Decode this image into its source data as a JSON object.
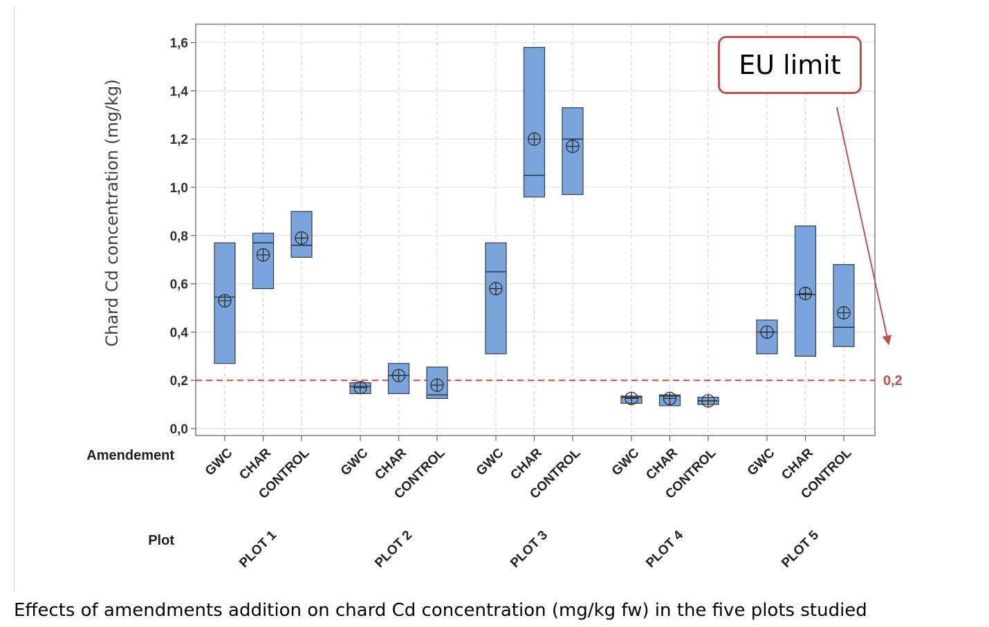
{
  "caption": "Effects of amendments addition on chard Cd concentration (mg/kg fw) in the five plots studied",
  "annotation": {
    "label": "EU limit",
    "color": "#c0504d"
  },
  "chart_data": {
    "type": "boxplot",
    "ylabel": "Chard Cd concentration (mg/kg)",
    "ylim": [
      0,
      1.65
    ],
    "yticks": [
      "0,0",
      "0,2",
      "0,4",
      "0,6",
      "0,8",
      "1,0",
      "1,2",
      "1,4",
      "1,6"
    ],
    "ytick_values": [
      0,
      0.2,
      0.4,
      0.6,
      0.8,
      1.0,
      1.2,
      1.4,
      1.6
    ],
    "grid": true,
    "row_labels": {
      "amendment": "Amendement",
      "plot": "Plot"
    },
    "reference_line": {
      "value": 0.2,
      "label": "0,2",
      "color": "#e04040",
      "style": "dashed"
    },
    "box_color": "#7aa5dc",
    "groups": [
      {
        "plot": "PLOT 1",
        "boxes": [
          {
            "amendment": "GWC",
            "low": 0.27,
            "high": 0.77,
            "median": 0.545,
            "mean": 0.53
          },
          {
            "amendment": "CHAR",
            "low": 0.58,
            "high": 0.81,
            "median": 0.77,
            "mean": 0.72
          },
          {
            "amendment": "CONTROL",
            "low": 0.71,
            "high": 0.9,
            "median": 0.76,
            "mean": 0.79
          }
        ]
      },
      {
        "plot": "PLOT 2",
        "boxes": [
          {
            "amendment": "GWC",
            "low": 0.145,
            "high": 0.19,
            "median": 0.175,
            "mean": 0.17
          },
          {
            "amendment": "CHAR",
            "low": 0.145,
            "high": 0.27,
            "median": 0.22,
            "mean": 0.22
          },
          {
            "amendment": "CONTROL",
            "low": 0.125,
            "high": 0.255,
            "median": 0.14,
            "mean": 0.18
          }
        ]
      },
      {
        "plot": "PLOT 3",
        "boxes": [
          {
            "amendment": "GWC",
            "low": 0.31,
            "high": 0.77,
            "median": 0.65,
            "mean": 0.58
          },
          {
            "amendment": "CHAR",
            "low": 0.96,
            "high": 1.58,
            "median": 1.05,
            "mean": 1.2
          },
          {
            "amendment": "CONTROL",
            "low": 0.97,
            "high": 1.33,
            "median": 1.2,
            "mean": 1.17
          }
        ]
      },
      {
        "plot": "PLOT 4",
        "boxes": [
          {
            "amendment": "GWC",
            "low": 0.105,
            "high": 0.135,
            "median": 0.13,
            "mean": 0.125
          },
          {
            "amendment": "CHAR",
            "low": 0.095,
            "high": 0.14,
            "median": 0.135,
            "mean": 0.125
          },
          {
            "amendment": "CONTROL",
            "low": 0.1,
            "high": 0.13,
            "median": 0.115,
            "mean": 0.115
          }
        ]
      },
      {
        "plot": "PLOT 5",
        "boxes": [
          {
            "amendment": "GWC",
            "low": 0.31,
            "high": 0.45,
            "median": 0.4,
            "mean": 0.4
          },
          {
            "amendment": "CHAR",
            "low": 0.3,
            "high": 0.84,
            "median": 0.555,
            "mean": 0.56
          },
          {
            "amendment": "CONTROL",
            "low": 0.34,
            "high": 0.68,
            "median": 0.42,
            "mean": 0.48
          }
        ]
      }
    ]
  }
}
